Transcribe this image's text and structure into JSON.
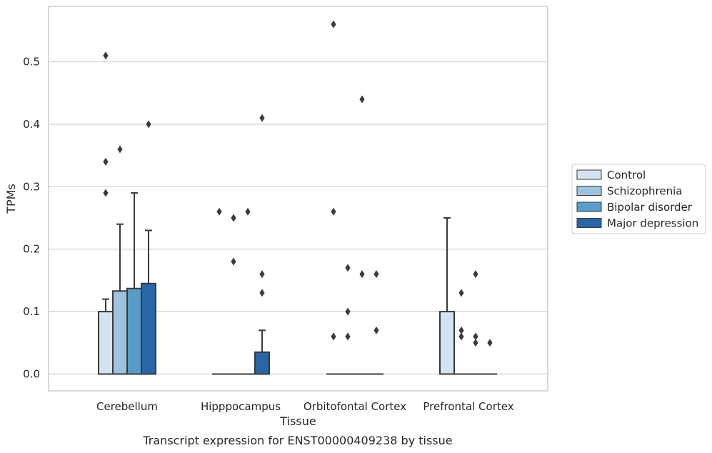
{
  "chart_data": {
    "type": "boxplot",
    "title": "",
    "caption": "Transcript expression for ENST00000409238 by tissue",
    "xlabel": "Tissue",
    "ylabel": "TPMs",
    "ylim": [
      -0.027,
      0.59
    ],
    "yticks": [
      0.0,
      0.1,
      0.2,
      0.3,
      0.4,
      0.5
    ],
    "ytick_labels": [
      "0.0",
      "0.1",
      "0.2",
      "0.3",
      "0.4",
      "0.5"
    ],
    "grid": "horizontal",
    "legend_position": "right",
    "categories": [
      "Cerebellum",
      "Hipppocampus",
      "Orbitofontal Cortex",
      "Prefrontal Cortex"
    ],
    "series": [
      {
        "name": "Control",
        "color": "#d4e3f1",
        "boxes": [
          {
            "q1": 0.0,
            "median": 0.0,
            "q3": 0.1,
            "whisker_low": 0.0,
            "whisker_high": 0.12,
            "outliers": [
              0.51,
              0.34,
              0.29
            ]
          },
          {
            "q1": 0.0,
            "median": 0.0,
            "q3": 0.0,
            "whisker_low": 0.0,
            "whisker_high": 0.0,
            "outliers": [
              0.26
            ]
          },
          {
            "q1": 0.0,
            "median": 0.0,
            "q3": 0.0,
            "whisker_low": 0.0,
            "whisker_high": 0.0,
            "outliers": [
              0.56,
              0.26,
              0.06
            ]
          },
          {
            "q1": 0.0,
            "median": 0.0,
            "q3": 0.1,
            "whisker_low": 0.0,
            "whisker_high": 0.25,
            "outliers": []
          }
        ]
      },
      {
        "name": "Schizophrenia",
        "color": "#9ec3dd",
        "boxes": [
          {
            "q1": 0.0,
            "median": 0.0,
            "q3": 0.133,
            "whisker_low": 0.0,
            "whisker_high": 0.24,
            "outliers": [
              0.36
            ]
          },
          {
            "q1": 0.0,
            "median": 0.0,
            "q3": 0.0,
            "whisker_low": 0.0,
            "whisker_high": 0.0,
            "outliers": [
              0.25,
              0.18
            ]
          },
          {
            "q1": 0.0,
            "median": 0.0,
            "q3": 0.0,
            "whisker_low": 0.0,
            "whisker_high": 0.0,
            "outliers": [
              0.17,
              0.1,
              0.06
            ]
          },
          {
            "q1": 0.0,
            "median": 0.0,
            "q3": 0.0,
            "whisker_low": 0.0,
            "whisker_high": 0.0,
            "outliers": [
              0.13,
              0.07,
              0.06
            ]
          }
        ]
      },
      {
        "name": "Bipolar disorder",
        "color": "#5b9bc9",
        "boxes": [
          {
            "q1": 0.0,
            "median": 0.0,
            "q3": 0.137,
            "whisker_low": 0.0,
            "whisker_high": 0.29,
            "outliers": []
          },
          {
            "q1": 0.0,
            "median": 0.0,
            "q3": 0.0,
            "whisker_low": 0.0,
            "whisker_high": 0.0,
            "outliers": [
              0.26
            ]
          },
          {
            "q1": 0.0,
            "median": 0.0,
            "q3": 0.0,
            "whisker_low": 0.0,
            "whisker_high": 0.0,
            "outliers": [
              0.44,
              0.16
            ]
          },
          {
            "q1": 0.0,
            "median": 0.0,
            "q3": 0.0,
            "whisker_low": 0.0,
            "whisker_high": 0.0,
            "outliers": [
              0.16,
              0.06,
              0.05
            ]
          }
        ]
      },
      {
        "name": "Major depression",
        "color": "#2a66a5",
        "boxes": [
          {
            "q1": 0.0,
            "median": 0.0,
            "q3": 0.145,
            "whisker_low": 0.0,
            "whisker_high": 0.23,
            "outliers": [
              0.4
            ]
          },
          {
            "q1": 0.0,
            "median": 0.0,
            "q3": 0.035,
            "whisker_low": 0.0,
            "whisker_high": 0.07,
            "outliers": [
              0.41,
              0.16,
              0.13
            ]
          },
          {
            "q1": 0.0,
            "median": 0.0,
            "q3": 0.0,
            "whisker_low": 0.0,
            "whisker_high": 0.0,
            "outliers": [
              0.16,
              0.07
            ]
          },
          {
            "q1": 0.0,
            "median": 0.0,
            "q3": 0.0,
            "whisker_low": 0.0,
            "whisker_high": 0.0,
            "outliers": [
              0.05
            ]
          }
        ]
      }
    ]
  }
}
